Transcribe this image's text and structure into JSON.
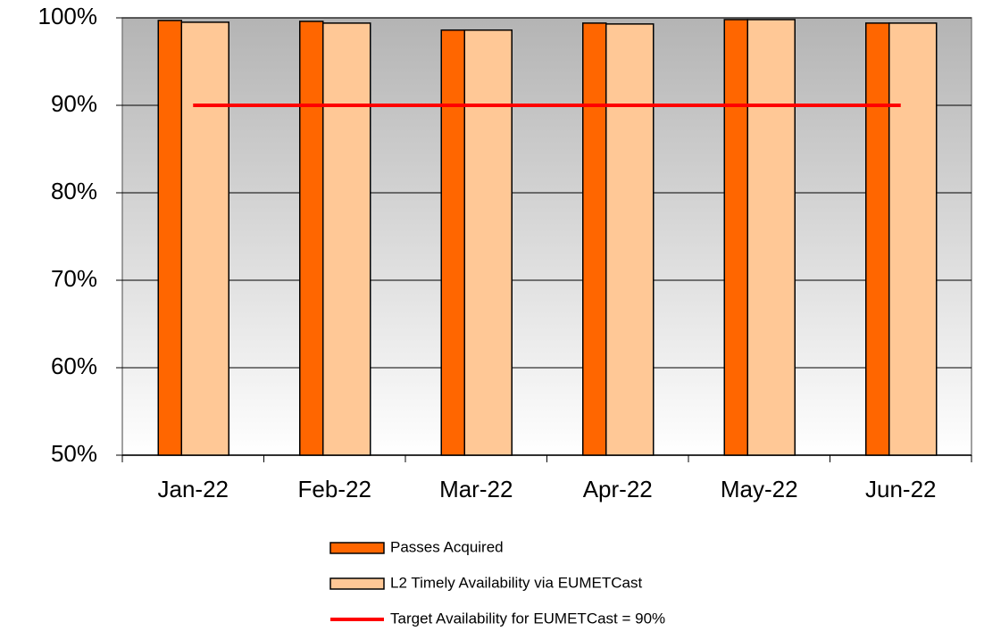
{
  "chart_data": {
    "type": "bar",
    "categories": [
      "Jan-22",
      "Feb-22",
      "Mar-22",
      "Apr-22",
      "May-22",
      "Jun-22"
    ],
    "series": [
      {
        "name": "Passes Acquired",
        "color": "#ff6600",
        "values": [
          99.7,
          99.6,
          98.6,
          99.4,
          99.8,
          99.4
        ]
      },
      {
        "name": "L2 Timely Availability via EUMETCast",
        "color": "#ffc896",
        "values": [
          99.5,
          99.4,
          98.6,
          99.3,
          99.8,
          99.4
        ]
      },
      {
        "name": "Target Availability for EUMETCast = 90%",
        "color": "#ff0000",
        "type": "line",
        "values": [
          90,
          90,
          90,
          90,
          90,
          90
        ]
      }
    ],
    "ylim": [
      50,
      100
    ],
    "yticks": [
      {
        "value": 50,
        "label": "50%"
      },
      {
        "value": 60,
        "label": "60%"
      },
      {
        "value": 70,
        "label": "70%"
      },
      {
        "value": 80,
        "label": "80%"
      },
      {
        "value": 90,
        "label": "90%"
      },
      {
        "value": 100,
        "label": "100%"
      }
    ],
    "grid": true,
    "legend": "bottom"
  }
}
